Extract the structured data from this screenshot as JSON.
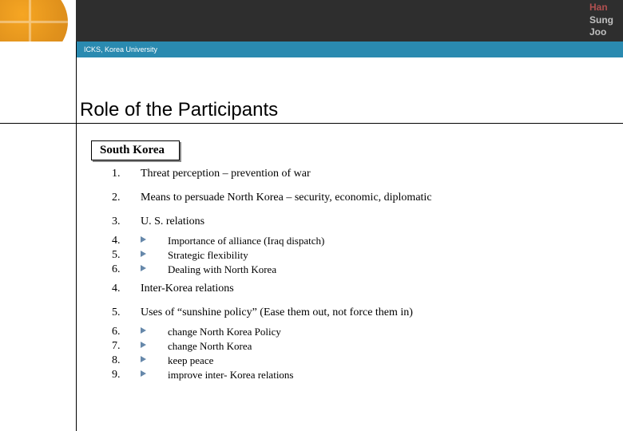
{
  "author": {
    "line1": "Han",
    "line2": "Sung",
    "line3": "Joo"
  },
  "subbar": "ICKS, Korea University",
  "title": "Role of the Participants",
  "box_label": "South Korea",
  "items": {
    "i1": {
      "n": "1.",
      "t": "Threat perception – prevention of war"
    },
    "i2": {
      "n": "2.",
      "t": "Means to persuade North Korea – security, economic, diplomatic"
    },
    "i3": {
      "n": "3.",
      "t": "U. S. relations"
    },
    "s3a": {
      "n": "4.",
      "t": "Importance of alliance (Iraq dispatch)"
    },
    "s3b": {
      "n": "5.",
      "t": "Strategic flexibility"
    },
    "s3c": {
      "n": "6.",
      "t": "Dealing with North Korea"
    },
    "i4": {
      "n": "4.",
      "t": "Inter-Korea relations"
    },
    "i5": {
      "n": "5.",
      "t": "Uses of “sunshine policy” (Ease them out, not force them in)"
    },
    "s5a": {
      "n": "6.",
      "t": "change North Korea Policy"
    },
    "s5b": {
      "n": "7.",
      "t": "change North Korea"
    },
    "s5c": {
      "n": "8.",
      "t": "keep peace"
    },
    "s5d": {
      "n": "9.",
      "t": "improve inter- Korea relations"
    }
  }
}
